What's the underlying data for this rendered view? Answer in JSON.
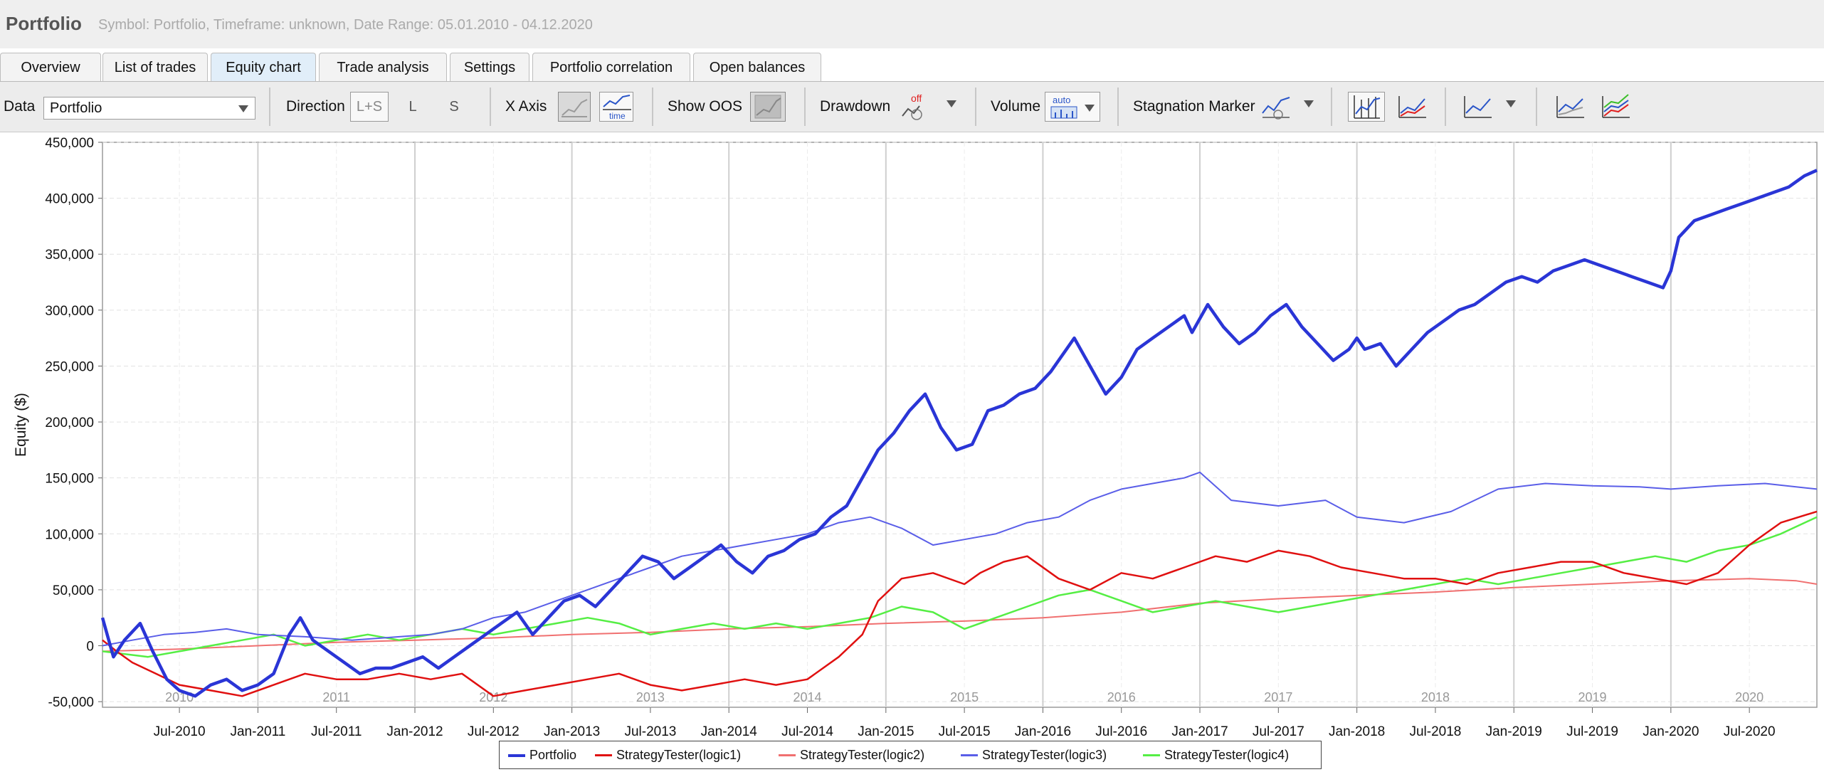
{
  "window": {
    "title": "Portfolio",
    "subtitle": "Symbol: Portfolio, Timeframe: unknown, Date Range: 05.01.2010 - 04.12.2020"
  },
  "tabs": [
    {
      "label": "Overview",
      "active": false
    },
    {
      "label": "List of trades",
      "active": false
    },
    {
      "label": "Equity chart",
      "active": true
    },
    {
      "label": "Trade analysis",
      "active": false
    },
    {
      "label": "Settings",
      "active": false
    },
    {
      "label": "Portfolio correlation",
      "active": false
    },
    {
      "label": "Open balances",
      "active": false
    }
  ],
  "toolbar": {
    "data_label": "Data",
    "data_value": "Portfolio",
    "direction_label": "Direction",
    "direction_options": [
      "L+S",
      "L",
      "S"
    ],
    "xaxis_label": "X Axis",
    "xaxis_time_icon_text": "time",
    "show_oos_label": "Show OOS",
    "drawdown_label": "Drawdown",
    "drawdown_icon_text": "off",
    "volume_label": "Volume",
    "volume_icon_text": "auto",
    "stagnation_label": "Stagnation Marker"
  },
  "colors": {
    "portfolio": "#2a35d6",
    "logic1": "#e01010",
    "logic2": "#f07070",
    "logic3": "#5a5ee8",
    "logic4": "#55ee44"
  },
  "chart_data": {
    "type": "line",
    "ylabel": "Equity ($)",
    "xlabel": "",
    "ylim": [
      -60000,
      450000
    ],
    "xlim": [
      2010.01,
      2020.93
    ],
    "y_ticks": [
      450000,
      400000,
      350000,
      300000,
      250000,
      200000,
      150000,
      100000,
      50000,
      0,
      -50000
    ],
    "y_tick_labels": [
      "450,000",
      "400,000",
      "350,000",
      "300,000",
      "250,000",
      "200,000",
      "150,000",
      "100,000",
      "50,000",
      "0",
      "-50,000"
    ],
    "year_labels": [
      {
        "label": "2010",
        "x": 2010.5
      },
      {
        "label": "2011",
        "x": 2011.5
      },
      {
        "label": "2012",
        "x": 2012.5
      },
      {
        "label": "2013",
        "x": 2013.5
      },
      {
        "label": "2014",
        "x": 2014.5
      },
      {
        "label": "2015",
        "x": 2015.5
      },
      {
        "label": "2016",
        "x": 2016.5
      },
      {
        "label": "2017",
        "x": 2017.5
      },
      {
        "label": "2018",
        "x": 2018.5
      },
      {
        "label": "2019",
        "x": 2019.5
      },
      {
        "label": "2020",
        "x": 2020.5
      }
    ],
    "x_ticks": [
      {
        "label": "Jul-2010",
        "x": 2010.5
      },
      {
        "label": "Jan-2011",
        "x": 2011.0
      },
      {
        "label": "Jul-2011",
        "x": 2011.5
      },
      {
        "label": "Jan-2012",
        "x": 2012.0
      },
      {
        "label": "Jul-2012",
        "x": 2012.5
      },
      {
        "label": "Jan-2013",
        "x": 2013.0
      },
      {
        "label": "Jul-2013",
        "x": 2013.5
      },
      {
        "label": "Jan-2014",
        "x": 2014.0
      },
      {
        "label": "Jul-2014",
        "x": 2014.5
      },
      {
        "label": "Jan-2015",
        "x": 2015.0
      },
      {
        "label": "Jul-2015",
        "x": 2015.5
      },
      {
        "label": "Jan-2016",
        "x": 2016.0
      },
      {
        "label": "Jul-2016",
        "x": 2016.5
      },
      {
        "label": "Jan-2017",
        "x": 2017.0
      },
      {
        "label": "Jul-2017",
        "x": 2017.5
      },
      {
        "label": "Jan-2018",
        "x": 2018.0
      },
      {
        "label": "Jul-2018",
        "x": 2018.5
      },
      {
        "label": "Jan-2019",
        "x": 2019.0
      },
      {
        "label": "Jul-2019",
        "x": 2019.5
      },
      {
        "label": "Jan-2020",
        "x": 2020.0
      },
      {
        "label": "Jul-2020",
        "x": 2020.5
      }
    ],
    "grid": true,
    "legend_position": "bottom-center",
    "series": [
      {
        "name": "Portfolio",
        "color_key": "portfolio",
        "x": [
          2010.01,
          2010.08,
          2010.15,
          2010.25,
          2010.33,
          2010.42,
          2010.5,
          2010.6,
          2010.7,
          2010.8,
          2010.9,
          2011.0,
          2011.1,
          2011.2,
          2011.27,
          2011.35,
          2011.45,
          2011.55,
          2011.65,
          2011.75,
          2011.85,
          2011.95,
          2012.05,
          2012.15,
          2012.25,
          2012.35,
          2012.45,
          2012.55,
          2012.65,
          2012.75,
          2012.85,
          2012.95,
          2013.05,
          2013.15,
          2013.25,
          2013.35,
          2013.45,
          2013.55,
          2013.65,
          2013.75,
          2013.85,
          2013.95,
          2014.05,
          2014.15,
          2014.25,
          2014.35,
          2014.45,
          2014.55,
          2014.65,
          2014.75,
          2014.85,
          2014.95,
          2015.05,
          2015.15,
          2015.25,
          2015.3,
          2015.35,
          2015.45,
          2015.55,
          2015.65,
          2015.75,
          2015.85,
          2015.95,
          2016.05,
          2016.15,
          2016.2,
          2016.3,
          2016.4,
          2016.5,
          2016.6,
          2016.7,
          2016.8,
          2016.9,
          2016.95,
          2017.05,
          2017.15,
          2017.25,
          2017.35,
          2017.45,
          2017.55,
          2017.65,
          2017.75,
          2017.85,
          2017.95,
          2018.0,
          2018.05,
          2018.15,
          2018.25,
          2018.35,
          2018.45,
          2018.55,
          2018.65,
          2018.75,
          2018.85,
          2018.95,
          2019.05,
          2019.15,
          2019.25,
          2019.35,
          2019.45,
          2019.55,
          2019.65,
          2019.75,
          2019.85,
          2019.95,
          2020.0,
          2020.05,
          2020.15,
          2020.25,
          2020.35,
          2020.45,
          2020.55,
          2020.65,
          2020.75,
          2020.85,
          2020.93
        ],
        "y": [
          25000,
          -10000,
          5000,
          20000,
          -5000,
          -30000,
          -40000,
          -45000,
          -35000,
          -30000,
          -40000,
          -35000,
          -25000,
          10000,
          25000,
          5000,
          -5000,
          -15000,
          -25000,
          -20000,
          -20000,
          -15000,
          -10000,
          -20000,
          -10000,
          0,
          10000,
          20000,
          30000,
          10000,
          25000,
          40000,
          45000,
          35000,
          50000,
          65000,
          80000,
          75000,
          60000,
          70000,
          80000,
          90000,
          75000,
          65000,
          80000,
          85000,
          95000,
          100000,
          115000,
          125000,
          150000,
          175000,
          190000,
          210000,
          225000,
          210000,
          195000,
          175000,
          180000,
          210000,
          215000,
          225000,
          230000,
          245000,
          265000,
          275000,
          250000,
          225000,
          240000,
          265000,
          275000,
          285000,
          295000,
          280000,
          305000,
          285000,
          270000,
          280000,
          295000,
          305000,
          285000,
          270000,
          255000,
          265000,
          275000,
          265000,
          270000,
          250000,
          265000,
          280000,
          290000,
          300000,
          305000,
          315000,
          325000,
          330000,
          325000,
          335000,
          340000,
          345000,
          340000,
          335000,
          330000,
          325000,
          320000,
          335000,
          365000,
          380000,
          385000,
          390000,
          395000,
          400000,
          405000,
          410000,
          420000,
          425000
        ]
      },
      {
        "name": "StrategyTester(logic1)",
        "color_key": "logic1",
        "x": [
          2010.01,
          2010.1,
          2010.2,
          2010.35,
          2010.5,
          2010.7,
          2010.9,
          2011.1,
          2011.3,
          2011.5,
          2011.7,
          2011.9,
          2012.1,
          2012.3,
          2012.5,
          2012.7,
          2012.9,
          2013.1,
          2013.3,
          2013.5,
          2013.7,
          2013.9,
          2014.1,
          2014.3,
          2014.5,
          2014.7,
          2014.85,
          2014.95,
          2015.1,
          2015.3,
          2015.5,
          2015.6,
          2015.75,
          2015.9,
          2016.1,
          2016.3,
          2016.5,
          2016.7,
          2016.9,
          2017.1,
          2017.3,
          2017.5,
          2017.7,
          2017.9,
          2018.1,
          2018.3,
          2018.5,
          2018.7,
          2018.9,
          2019.1,
          2019.3,
          2019.5,
          2019.7,
          2019.9,
          2020.1,
          2020.3,
          2020.5,
          2020.7,
          2020.93
        ],
        "y": [
          5000,
          -5000,
          -15000,
          -25000,
          -35000,
          -40000,
          -45000,
          -35000,
          -25000,
          -30000,
          -30000,
          -25000,
          -30000,
          -25000,
          -45000,
          -40000,
          -35000,
          -30000,
          -25000,
          -35000,
          -40000,
          -35000,
          -30000,
          -35000,
          -30000,
          -10000,
          10000,
          40000,
          60000,
          65000,
          55000,
          65000,
          75000,
          80000,
          60000,
          50000,
          65000,
          60000,
          70000,
          80000,
          75000,
          85000,
          80000,
          70000,
          65000,
          60000,
          60000,
          55000,
          65000,
          70000,
          75000,
          75000,
          65000,
          60000,
          55000,
          65000,
          90000,
          110000,
          120000
        ]
      },
      {
        "name": "StrategyTester(logic2)",
        "color_key": "logic2",
        "x": [
          2010.01,
          2010.5,
          2011.0,
          2011.5,
          2012.0,
          2012.5,
          2013.0,
          2013.5,
          2014.0,
          2014.5,
          2015.0,
          2015.5,
          2016.0,
          2016.5,
          2017.0,
          2017.5,
          2018.0,
          2018.5,
          2019.0,
          2019.5,
          2020.0,
          2020.5,
          2020.8,
          2020.93
        ],
        "y": [
          -5000,
          -3000,
          0,
          3000,
          5000,
          7000,
          10000,
          12000,
          15000,
          17000,
          20000,
          22000,
          25000,
          30000,
          38000,
          42000,
          45000,
          48000,
          52000,
          55000,
          58000,
          60000,
          58000,
          55000
        ]
      },
      {
        "name": "StrategyTester(logic3)",
        "color_key": "logic3",
        "x": [
          2010.01,
          2010.2,
          2010.4,
          2010.6,
          2010.8,
          2011.0,
          2011.3,
          2011.6,
          2011.9,
          2012.1,
          2012.3,
          2012.5,
          2012.7,
          2012.9,
          2013.1,
          2013.3,
          2013.5,
          2013.7,
          2013.9,
          2014.1,
          2014.3,
          2014.5,
          2014.7,
          2014.9,
          2015.1,
          2015.3,
          2015.5,
          2015.7,
          2015.9,
          2016.1,
          2016.3,
          2016.5,
          2016.7,
          2016.9,
          2017.0,
          2017.2,
          2017.5,
          2017.8,
          2018.0,
          2018.3,
          2018.6,
          2018.9,
          2019.2,
          2019.5,
          2019.8,
          2020.0,
          2020.3,
          2020.6,
          2020.93
        ],
        "y": [
          0,
          5000,
          10000,
          12000,
          15000,
          10000,
          8000,
          5000,
          8000,
          10000,
          15000,
          25000,
          30000,
          40000,
          50000,
          60000,
          70000,
          80000,
          85000,
          90000,
          95000,
          100000,
          110000,
          115000,
          105000,
          90000,
          95000,
          100000,
          110000,
          115000,
          130000,
          140000,
          145000,
          150000,
          155000,
          130000,
          125000,
          130000,
          115000,
          110000,
          120000,
          140000,
          145000,
          143000,
          142000,
          140000,
          143000,
          145000,
          140000
        ]
      },
      {
        "name": "StrategyTester(logic4)",
        "color_key": "logic4",
        "x": [
          2010.01,
          2010.3,
          2010.5,
          2010.7,
          2010.9,
          2011.1,
          2011.3,
          2011.5,
          2011.7,
          2011.9,
          2012.1,
          2012.3,
          2012.5,
          2012.7,
          2012.9,
          2013.1,
          2013.3,
          2013.5,
          2013.7,
          2013.9,
          2014.1,
          2014.3,
          2014.5,
          2014.7,
          2014.9,
          2015.1,
          2015.3,
          2015.5,
          2015.7,
          2015.9,
          2016.1,
          2016.3,
          2016.5,
          2016.7,
          2016.9,
          2017.1,
          2017.3,
          2017.5,
          2017.7,
          2017.9,
          2018.1,
          2018.3,
          2018.5,
          2018.7,
          2018.9,
          2019.1,
          2019.3,
          2019.5,
          2019.7,
          2019.9,
          2020.1,
          2020.3,
          2020.5,
          2020.7,
          2020.93
        ],
        "y": [
          -5000,
          -10000,
          -5000,
          0,
          5000,
          10000,
          0,
          5000,
          10000,
          5000,
          10000,
          15000,
          10000,
          15000,
          20000,
          25000,
          20000,
          10000,
          15000,
          20000,
          15000,
          20000,
          15000,
          20000,
          25000,
          35000,
          30000,
          15000,
          25000,
          35000,
          45000,
          50000,
          40000,
          30000,
          35000,
          40000,
          35000,
          30000,
          35000,
          40000,
          45000,
          50000,
          55000,
          60000,
          55000,
          60000,
          65000,
          70000,
          75000,
          80000,
          75000,
          85000,
          90000,
          100000,
          115000
        ]
      }
    ]
  }
}
